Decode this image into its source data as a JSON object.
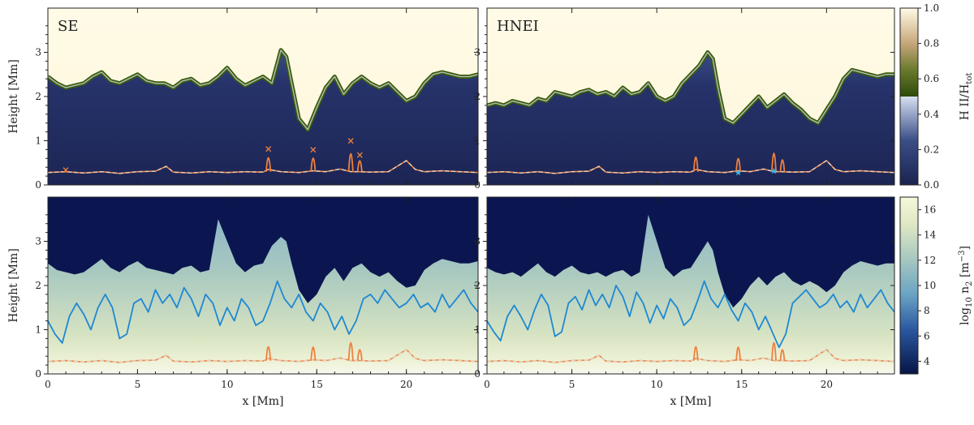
{
  "colors": {
    "ion_low": "#1a2350",
    "ion_mid": "#c7d3ef",
    "ion_high": "#fffbe6",
    "ion_green": "#3a5a0c",
    "ion_tan": "#e9c9a6",
    "dens_low": "#0b1650",
    "dens_mid": "#8fb1c8",
    "dens_high": "#f4f4d8",
    "orange_line": "#f07f3c",
    "dashed_line": "#e0d2c6",
    "blue_line": "#1e88d3",
    "cyan_marker": "#39b7e6"
  },
  "chart_data": [
    {
      "type": "heatmap",
      "panel_label": "SE",
      "xlabel": "",
      "ylabel": "Height [Mm]",
      "xlim": [
        0,
        24
      ],
      "ylim": [
        0,
        4
      ],
      "xticks": [
        0,
        5,
        10,
        15,
        20
      ],
      "yticks": [
        0,
        1,
        2,
        3
      ],
      "quantity": "ionization",
      "boundary_profile": {
        "x": [
          0,
          0.5,
          1,
          1.5,
          2,
          2.5,
          3,
          3.5,
          4,
          4.5,
          5,
          5.5,
          6,
          6.5,
          7,
          7.5,
          8,
          8.5,
          9,
          9.5,
          10,
          10.5,
          11,
          11.5,
          12,
          12.5,
          13,
          13.3,
          13.6,
          14,
          14.5,
          15,
          15.5,
          16,
          16.5,
          17,
          17.5,
          18,
          18.5,
          19,
          19.5,
          20,
          20.5,
          21,
          21.5,
          22,
          22.5,
          23,
          23.5,
          24
        ],
        "y": [
          2.45,
          2.3,
          2.2,
          2.25,
          2.3,
          2.45,
          2.55,
          2.35,
          2.3,
          2.4,
          2.5,
          2.35,
          2.3,
          2.3,
          2.2,
          2.35,
          2.4,
          2.25,
          2.3,
          2.45,
          2.65,
          2.4,
          2.25,
          2.35,
          2.45,
          2.3,
          3.05,
          2.9,
          2.3,
          1.5,
          1.25,
          1.75,
          2.2,
          2.45,
          2.05,
          2.3,
          2.45,
          2.3,
          2.2,
          2.3,
          2.1,
          1.9,
          2.0,
          2.3,
          2.5,
          2.55,
          2.5,
          2.45,
          2.45,
          2.5
        ]
      },
      "lower_profile_x": [
        0,
        1,
        2,
        3,
        4,
        5,
        6,
        6.6,
        7,
        8,
        9,
        10,
        11,
        12,
        12.3,
        13,
        14,
        14.8,
        15.5,
        16.3,
        16.9,
        17.4,
        18,
        19,
        20,
        20.5,
        21,
        22,
        23,
        24
      ],
      "lower_profile_y": [
        0.28,
        0.3,
        0.27,
        0.3,
        0.26,
        0.3,
        0.31,
        0.42,
        0.29,
        0.27,
        0.3,
        0.28,
        0.3,
        0.29,
        0.35,
        0.3,
        0.28,
        0.32,
        0.3,
        0.36,
        0.3,
        0.3,
        0.29,
        0.3,
        0.55,
        0.35,
        0.3,
        0.32,
        0.3,
        0.28
      ],
      "spikes": [
        {
          "x": 12.3,
          "y": 0.82
        },
        {
          "x": 14.8,
          "y": 0.8
        },
        {
          "x": 16.9,
          "y": 1.0
        },
        {
          "x": 17.4,
          "y": 0.68
        }
      ],
      "x_markers": [
        {
          "x": 1.0,
          "y": 0.34
        },
        {
          "x": 12.3,
          "y": 0.82
        },
        {
          "x": 14.8,
          "y": 0.8
        },
        {
          "x": 16.9,
          "y": 1.0
        },
        {
          "x": 17.4,
          "y": 0.68
        }
      ],
      "star_markers": []
    },
    {
      "type": "heatmap",
      "panel_label": "HNEI",
      "xlabel": "",
      "ylabel": "",
      "xlim": [
        0,
        24
      ],
      "ylim": [
        0,
        4
      ],
      "xticks": [
        0,
        5,
        10,
        15,
        20
      ],
      "yticks": [
        0,
        1,
        2,
        3
      ],
      "quantity": "ionization",
      "boundary_profile": {
        "x": [
          0,
          0.5,
          1,
          1.5,
          2,
          2.5,
          3,
          3.5,
          4,
          4.5,
          5,
          5.5,
          6,
          6.5,
          7,
          7.5,
          8,
          8.5,
          9,
          9.5,
          10,
          10.5,
          11,
          11.5,
          12,
          12.5,
          13,
          13.3,
          13.6,
          14,
          14.5,
          15,
          15.5,
          16,
          16.5,
          17,
          17.5,
          18,
          18.5,
          19,
          19.5,
          20,
          20.5,
          21,
          21.5,
          22,
          22.5,
          23,
          23.5,
          24
        ],
        "y": [
          1.8,
          1.85,
          1.8,
          1.9,
          1.85,
          1.8,
          1.95,
          1.9,
          2.1,
          2.05,
          2.0,
          2.1,
          2.15,
          2.05,
          2.1,
          2.0,
          2.2,
          2.05,
          2.1,
          2.3,
          2.0,
          1.9,
          2.0,
          2.3,
          2.5,
          2.7,
          3.0,
          2.85,
          2.2,
          1.5,
          1.4,
          1.6,
          1.8,
          2.0,
          1.75,
          1.9,
          2.05,
          1.85,
          1.7,
          1.5,
          1.4,
          1.7,
          2.0,
          2.4,
          2.6,
          2.55,
          2.5,
          2.45,
          2.5,
          2.5
        ]
      },
      "lower_profile_x": [
        0,
        1,
        2,
        3,
        4,
        5,
        6,
        6.6,
        7,
        8,
        9,
        10,
        11,
        12,
        12.3,
        13,
        14,
        14.8,
        15.5,
        16.3,
        16.9,
        17.4,
        18,
        19,
        20,
        20.5,
        21,
        22,
        23,
        24
      ],
      "lower_profile_y": [
        0.28,
        0.3,
        0.27,
        0.3,
        0.26,
        0.3,
        0.31,
        0.42,
        0.29,
        0.27,
        0.3,
        0.28,
        0.3,
        0.29,
        0.35,
        0.3,
        0.28,
        0.32,
        0.3,
        0.36,
        0.3,
        0.3,
        0.29,
        0.3,
        0.55,
        0.35,
        0.3,
        0.32,
        0.3,
        0.28
      ],
      "spikes": [
        {
          "x": 12.3,
          "y": 0.85
        },
        {
          "x": 14.8,
          "y": 0.78
        },
        {
          "x": 16.9,
          "y": 1.02
        },
        {
          "x": 17.4,
          "y": 0.72
        }
      ],
      "x_markers": [],
      "star_markers": [
        {
          "x": 14.8,
          "y": 0.28
        },
        {
          "x": 16.9,
          "y": 0.32
        }
      ]
    },
    {
      "type": "heatmap",
      "panel_label": "",
      "xlabel": "x [Mm]",
      "ylabel": "Height [Mm]",
      "xlim": [
        0,
        24
      ],
      "ylim": [
        0,
        4
      ],
      "xticks": [
        0,
        5,
        10,
        15,
        20
      ],
      "yticks": [
        0,
        1,
        2,
        3
      ],
      "quantity": "density",
      "boundary_profile": {
        "x": [
          0,
          0.5,
          1,
          1.5,
          2,
          2.5,
          3,
          3.5,
          4,
          4.5,
          5,
          5.5,
          6,
          6.5,
          7,
          7.5,
          8,
          8.5,
          9,
          9.5,
          10,
          10.5,
          11,
          11.5,
          12,
          12.5,
          13,
          13.3,
          13.6,
          14,
          14.5,
          15,
          15.5,
          16,
          16.5,
          17,
          17.5,
          18,
          18.5,
          19,
          19.5,
          20,
          20.5,
          21,
          21.5,
          22,
          22.5,
          23,
          23.5,
          24
        ],
        "y": [
          2.5,
          2.35,
          2.3,
          2.25,
          2.3,
          2.45,
          2.6,
          2.4,
          2.3,
          2.45,
          2.55,
          2.4,
          2.35,
          2.3,
          2.25,
          2.4,
          2.45,
          2.3,
          2.35,
          3.5,
          3.0,
          2.5,
          2.3,
          2.45,
          2.5,
          2.9,
          3.1,
          3.0,
          2.5,
          1.9,
          1.6,
          1.8,
          2.2,
          2.4,
          2.1,
          2.4,
          2.5,
          2.3,
          2.2,
          2.3,
          2.1,
          1.95,
          2.0,
          2.35,
          2.5,
          2.6,
          2.55,
          2.5,
          2.5,
          2.55
        ]
      },
      "blue_line": {
        "x": [
          0,
          0.4,
          0.8,
          1.2,
          1.6,
          2,
          2.4,
          2.8,
          3.2,
          3.6,
          4,
          4.4,
          4.8,
          5.2,
          5.6,
          6,
          6.4,
          6.8,
          7.2,
          7.6,
          8,
          8.4,
          8.8,
          9.2,
          9.6,
          10,
          10.4,
          10.8,
          11.2,
          11.6,
          12,
          12.4,
          12.8,
          13.2,
          13.6,
          14,
          14.4,
          14.8,
          15.2,
          15.6,
          16,
          16.4,
          16.8,
          17.2,
          17.6,
          18,
          18.4,
          18.8,
          19.2,
          19.6,
          20,
          20.4,
          20.8,
          21.2,
          21.6,
          22,
          22.4,
          22.8,
          23.2,
          23.6,
          24
        ],
        "y": [
          1.2,
          0.9,
          0.7,
          1.3,
          1.6,
          1.35,
          1.0,
          1.5,
          1.8,
          1.5,
          0.8,
          0.9,
          1.6,
          1.7,
          1.4,
          1.9,
          1.6,
          1.8,
          1.5,
          1.95,
          1.7,
          1.3,
          1.8,
          1.6,
          1.1,
          1.5,
          1.2,
          1.7,
          1.5,
          1.1,
          1.2,
          1.6,
          2.1,
          1.7,
          1.5,
          1.8,
          1.4,
          1.2,
          1.6,
          1.4,
          1.0,
          1.3,
          0.9,
          1.2,
          1.7,
          1.8,
          1.6,
          1.9,
          1.7,
          1.5,
          1.6,
          1.8,
          1.5,
          1.6,
          1.4,
          1.8,
          1.5,
          1.7,
          1.9,
          1.6,
          1.4
        ]
      },
      "lower_profile_x": [
        0,
        1,
        2,
        3,
        4,
        5,
        6,
        6.6,
        7,
        8,
        9,
        10,
        11,
        12,
        12.3,
        13,
        14,
        14.8,
        15.5,
        16.3,
        16.9,
        17.4,
        18,
        19,
        20,
        20.5,
        21,
        22,
        23,
        24
      ],
      "lower_profile_y": [
        0.28,
        0.3,
        0.27,
        0.3,
        0.26,
        0.3,
        0.31,
        0.42,
        0.29,
        0.27,
        0.3,
        0.28,
        0.3,
        0.29,
        0.35,
        0.3,
        0.28,
        0.32,
        0.3,
        0.36,
        0.3,
        0.3,
        0.29,
        0.3,
        0.55,
        0.35,
        0.3,
        0.32,
        0.3,
        0.28
      ],
      "spikes": [
        {
          "x": 12.3,
          "y": 0.82
        },
        {
          "x": 14.8,
          "y": 0.8
        },
        {
          "x": 16.9,
          "y": 1.0
        },
        {
          "x": 17.4,
          "y": 0.68
        }
      ],
      "x_markers": [],
      "star_markers": []
    },
    {
      "type": "heatmap",
      "panel_label": "",
      "xlabel": "x [Mm]",
      "ylabel": "",
      "xlim": [
        0,
        24
      ],
      "ylim": [
        0,
        4
      ],
      "xticks": [
        0,
        5,
        10,
        15,
        20
      ],
      "yticks": [
        0,
        1,
        2,
        3
      ],
      "quantity": "density",
      "boundary_profile": {
        "x": [
          0,
          0.5,
          1,
          1.5,
          2,
          2.5,
          3,
          3.5,
          4,
          4.5,
          5,
          5.5,
          6,
          6.5,
          7,
          7.5,
          8,
          8.5,
          9,
          9.5,
          10,
          10.5,
          11,
          11.5,
          12,
          12.5,
          13,
          13.3,
          13.6,
          14,
          14.5,
          15,
          15.5,
          16,
          16.5,
          17,
          17.5,
          18,
          18.5,
          19,
          19.5,
          20,
          20.5,
          21,
          21.5,
          22,
          22.5,
          23,
          23.5,
          24
        ],
        "y": [
          2.4,
          2.3,
          2.25,
          2.3,
          2.2,
          2.35,
          2.5,
          2.3,
          2.2,
          2.35,
          2.45,
          2.3,
          2.25,
          2.3,
          2.2,
          2.3,
          2.35,
          2.2,
          2.3,
          3.6,
          3.0,
          2.4,
          2.2,
          2.35,
          2.4,
          2.7,
          3.0,
          2.8,
          2.3,
          1.8,
          1.5,
          1.7,
          2.0,
          2.2,
          2.0,
          2.2,
          2.3,
          2.1,
          2.0,
          2.1,
          2.0,
          1.85,
          2.0,
          2.3,
          2.45,
          2.55,
          2.5,
          2.45,
          2.5,
          2.5
        ]
      },
      "blue_line": {
        "x": [
          0,
          0.4,
          0.8,
          1.2,
          1.6,
          2,
          2.4,
          2.8,
          3.2,
          3.6,
          4,
          4.4,
          4.8,
          5.2,
          5.6,
          6,
          6.4,
          6.8,
          7.2,
          7.6,
          8,
          8.4,
          8.8,
          9.2,
          9.6,
          10,
          10.4,
          10.8,
          11.2,
          11.6,
          12,
          12.4,
          12.8,
          13.2,
          13.6,
          14,
          14.4,
          14.8,
          15.2,
          15.6,
          16,
          16.4,
          16.8,
          17.2,
          17.6,
          18,
          18.4,
          18.8,
          19.2,
          19.6,
          20,
          20.4,
          20.8,
          21.2,
          21.6,
          22,
          22.4,
          22.8,
          23.2,
          23.6,
          24
        ],
        "y": [
          1.2,
          0.95,
          0.75,
          1.3,
          1.55,
          1.3,
          1.0,
          1.45,
          1.8,
          1.55,
          0.85,
          0.95,
          1.6,
          1.75,
          1.45,
          1.9,
          1.55,
          1.8,
          1.5,
          2.0,
          1.75,
          1.3,
          1.85,
          1.6,
          1.15,
          1.55,
          1.25,
          1.7,
          1.5,
          1.1,
          1.25,
          1.65,
          2.1,
          1.7,
          1.5,
          1.8,
          1.45,
          1.2,
          1.6,
          1.4,
          1.0,
          1.3,
          0.95,
          0.6,
          0.9,
          1.6,
          1.75,
          1.9,
          1.7,
          1.5,
          1.6,
          1.8,
          1.5,
          1.65,
          1.4,
          1.8,
          1.5,
          1.7,
          1.9,
          1.6,
          1.4
        ]
      },
      "lower_profile_x": [
        0,
        1,
        2,
        3,
        4,
        5,
        6,
        6.6,
        7,
        8,
        9,
        10,
        11,
        12,
        12.3,
        13,
        14,
        14.8,
        15.5,
        16.3,
        16.9,
        17.4,
        18,
        19,
        20,
        20.5,
        21,
        22,
        23,
        24
      ],
      "lower_profile_y": [
        0.28,
        0.3,
        0.27,
        0.3,
        0.26,
        0.3,
        0.31,
        0.42,
        0.29,
        0.27,
        0.3,
        0.28,
        0.3,
        0.29,
        0.35,
        0.3,
        0.28,
        0.32,
        0.3,
        0.36,
        0.3,
        0.3,
        0.29,
        0.3,
        0.55,
        0.35,
        0.3,
        0.32,
        0.3,
        0.28
      ],
      "spikes": [
        {
          "x": 12.3,
          "y": 0.82
        },
        {
          "x": 14.8,
          "y": 0.8
        },
        {
          "x": 16.9,
          "y": 1.0
        },
        {
          "x": 17.4,
          "y": 0.68
        }
      ],
      "x_markers": [],
      "star_markers": []
    }
  ],
  "colorbars": [
    {
      "label_main": "H II/H",
      "label_sub": "tot",
      "range": [
        0,
        1
      ],
      "ticks": [
        0.0,
        0.2,
        0.4,
        0.6,
        0.8,
        1.0
      ],
      "tick_labels": [
        "0.0",
        "0.2",
        "0.4",
        "0.6",
        "0.8",
        "1.0"
      ]
    },
    {
      "label_main": "log",
      "label_sub1": "10",
      "label_mid": " n",
      "label_sub2": "2",
      "label_unit": " [m",
      "label_sup": "−3",
      "label_end": "]",
      "range": [
        3,
        17
      ],
      "ticks": [
        4,
        6,
        8,
        10,
        12,
        14,
        16
      ],
      "tick_labels": [
        "4",
        "6",
        "8",
        "10",
        "12",
        "14",
        "16"
      ]
    }
  ]
}
